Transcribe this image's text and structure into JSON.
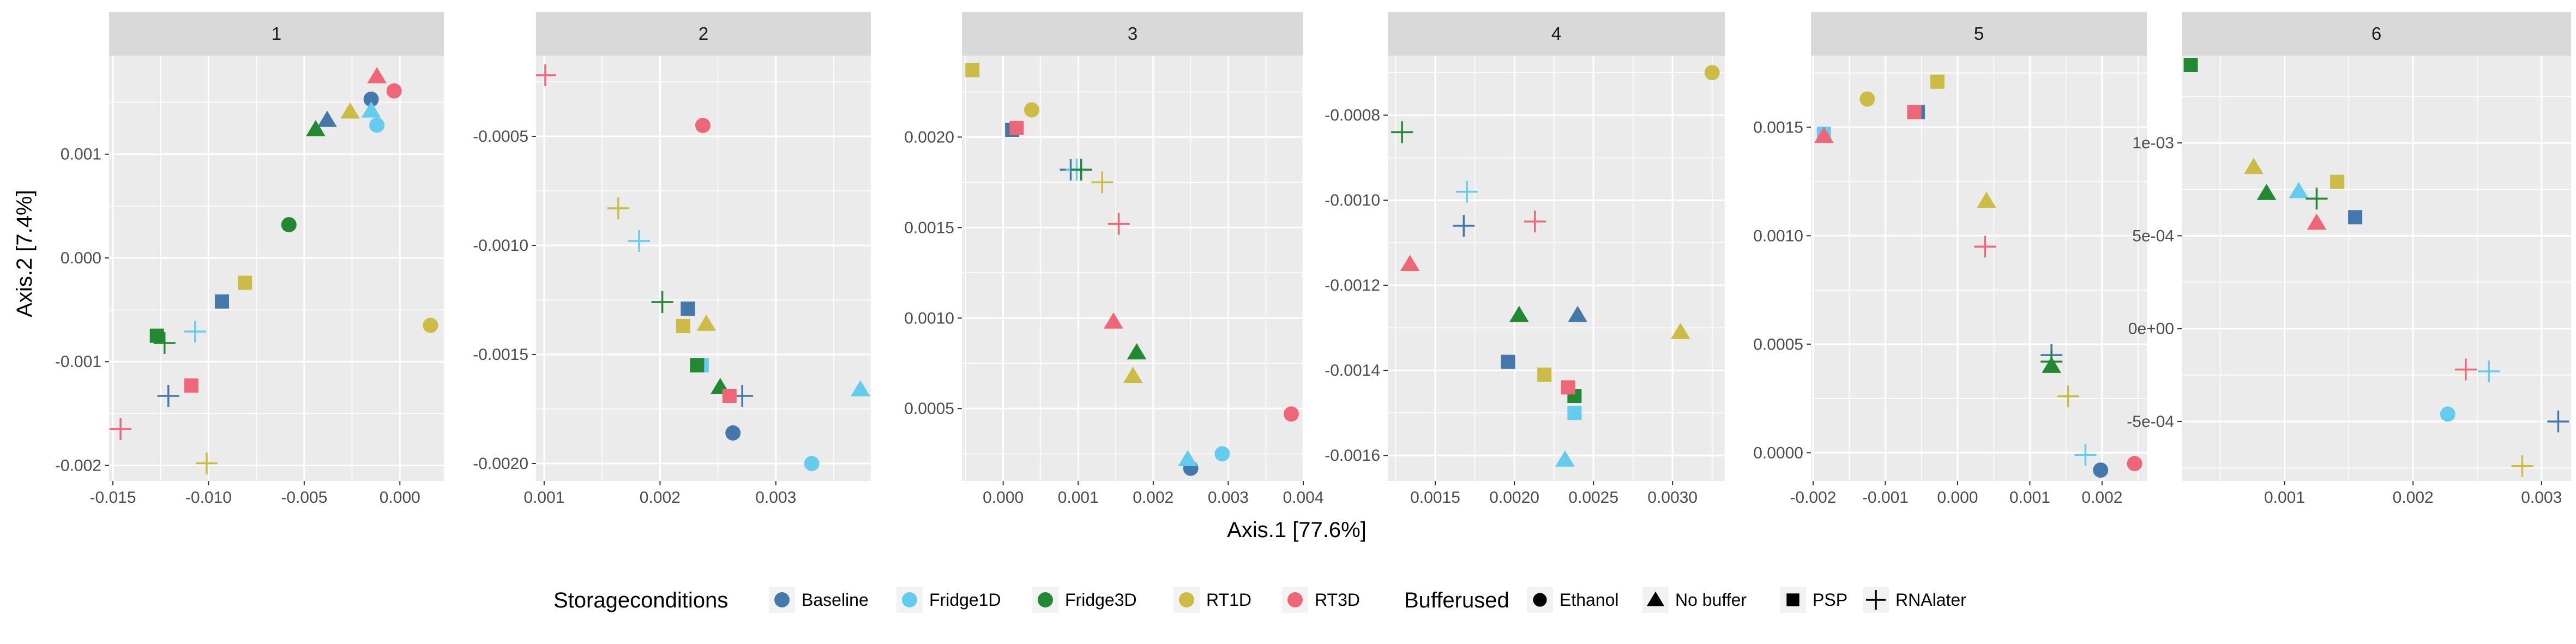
{
  "chart_data": {
    "type": "scatter",
    "xlabel": "Axis.1   [77.6%]",
    "ylabel": "Axis.2   [7.4%]",
    "colors": {
      "Baseline": "#4477AA",
      "Fridge1D": "#66CCEE",
      "Fridge3D": "#228833",
      "RT1D": "#CCBB44",
      "RT3D": "#EE6677"
    },
    "shapes": {
      "Ethanol": "circle",
      "No buffer": "triangle",
      "PSP": "square",
      "RNAlater": "plus"
    },
    "legend": {
      "position": "bottom",
      "color_title": "Storageconditions",
      "color_entries": [
        "Baseline",
        "Fridge1D",
        "Fridge3D",
        "RT1D",
        "RT3D"
      ],
      "shape_title": "Bufferused",
      "shape_entries": [
        "Ethanol",
        "No buffer",
        "PSP",
        "RNAlater"
      ]
    },
    "panels": [
      {
        "label": "1",
        "xlim": [
          -0.0152,
          0.0023
        ],
        "ylim": [
          -0.00215,
          0.00195
        ],
        "xticks": [
          -0.015,
          -0.01,
          -0.005,
          0.0
        ],
        "xtick_labels": [
          "-0.015",
          "-0.010",
          "-0.005",
          "0.000"
        ],
        "yticks": [
          -0.002,
          -0.001,
          0.0,
          0.001
        ],
        "ytick_labels": [
          "-0.002",
          "-0.001",
          "0.000",
          "0.001"
        ],
        "points": [
          {
            "x": -0.0015,
            "y": 0.00153,
            "color": "Baseline",
            "shape": "Ethanol"
          },
          {
            "x": -0.0038,
            "y": 0.00133,
            "color": "Baseline",
            "shape": "No buffer"
          },
          {
            "x": -0.0093,
            "y": -0.00042,
            "color": "Baseline",
            "shape": "PSP"
          },
          {
            "x": -0.0121,
            "y": -0.00133,
            "color": "Baseline",
            "shape": "RNAlater"
          },
          {
            "x": -0.0012,
            "y": 0.00128,
            "color": "Fridge1D",
            "shape": "Ethanol"
          },
          {
            "x": -0.0015,
            "y": 0.00142,
            "color": "Fridge1D",
            "shape": "No buffer"
          },
          {
            "x": -0.0107,
            "y": -0.00071,
            "color": "Fridge1D",
            "shape": "RNAlater"
          },
          {
            "x": -0.0058,
            "y": 0.00032,
            "color": "Fridge3D",
            "shape": "Ethanol"
          },
          {
            "x": -0.0044,
            "y": 0.00124,
            "color": "Fridge3D",
            "shape": "No buffer"
          },
          {
            "x": -0.0127,
            "y": -0.00075,
            "color": "Fridge3D",
            "shape": "PSP"
          },
          {
            "x": -0.0123,
            "y": -0.00082,
            "color": "Fridge3D",
            "shape": "RNAlater"
          },
          {
            "x": 0.0016,
            "y": -0.00065,
            "color": "RT1D",
            "shape": "Ethanol"
          },
          {
            "x": -0.0026,
            "y": 0.00141,
            "color": "RT1D",
            "shape": "No buffer"
          },
          {
            "x": -0.0081,
            "y": -0.00024,
            "color": "RT1D",
            "shape": "PSP"
          },
          {
            "x": -0.0101,
            "y": -0.00198,
            "color": "RT1D",
            "shape": "RNAlater"
          },
          {
            "x": -0.0003,
            "y": 0.00161,
            "color": "RT3D",
            "shape": "Ethanol"
          },
          {
            "x": -0.0012,
            "y": 0.00175,
            "color": "RT3D",
            "shape": "No buffer"
          },
          {
            "x": -0.0109,
            "y": -0.00123,
            "color": "RT3D",
            "shape": "PSP"
          },
          {
            "x": -0.0146,
            "y": -0.00165,
            "color": "RT3D",
            "shape": "RNAlater"
          }
        ]
      },
      {
        "label": "2",
        "xlim": [
          0.00093,
          0.00382
        ],
        "ylim": [
          -0.00208,
          -0.00013
        ],
        "xticks": [
          0.001,
          0.002,
          0.003
        ],
        "xtick_labels": [
          "0.001",
          "0.002",
          "0.003"
        ],
        "yticks": [
          -0.002,
          -0.0015,
          -0.001,
          -0.0005
        ],
        "ytick_labels": [
          "-0.0020",
          "-0.0015",
          "-0.0010",
          "-0.0005"
        ],
        "points": [
          {
            "x": 0.00263,
            "y": -0.00186,
            "color": "Baseline",
            "shape": "Ethanol"
          },
          {
            "x": 0.00224,
            "y": -0.00129,
            "color": "Baseline",
            "shape": "PSP"
          },
          {
            "x": 0.00271,
            "y": -0.00169,
            "color": "Baseline",
            "shape": "RNAlater"
          },
          {
            "x": 0.00331,
            "y": -0.002,
            "color": "Fridge1D",
            "shape": "Ethanol"
          },
          {
            "x": 0.00373,
            "y": -0.00166,
            "color": "Fridge1D",
            "shape": "No buffer"
          },
          {
            "x": 0.00236,
            "y": -0.00155,
            "color": "Fridge1D",
            "shape": "PSP"
          },
          {
            "x": 0.00182,
            "y": -0.00098,
            "color": "Fridge1D",
            "shape": "RNAlater"
          },
          {
            "x": 0.00252,
            "y": -0.00165,
            "color": "Fridge3D",
            "shape": "No buffer"
          },
          {
            "x": 0.00232,
            "y": -0.00155,
            "color": "Fridge3D",
            "shape": "PSP"
          },
          {
            "x": 0.00202,
            "y": -0.00126,
            "color": "Fridge3D",
            "shape": "RNAlater"
          },
          {
            "x": 0.0024,
            "y": -0.00136,
            "color": "RT1D",
            "shape": "No buffer"
          },
          {
            "x": 0.0022,
            "y": -0.00137,
            "color": "RT1D",
            "shape": "PSP"
          },
          {
            "x": 0.00164,
            "y": -0.00083,
            "color": "RT1D",
            "shape": "RNAlater"
          },
          {
            "x": 0.00237,
            "y": -0.00045,
            "color": "RT3D",
            "shape": "Ethanol"
          },
          {
            "x": 0.0026,
            "y": -0.00169,
            "color": "RT3D",
            "shape": "PSP"
          },
          {
            "x": 0.00101,
            "y": -0.00022,
            "color": "RT3D",
            "shape": "RNAlater"
          }
        ]
      },
      {
        "label": "3",
        "xlim": [
          -0.00055,
          0.004
        ],
        "ylim": [
          0.0001,
          0.00245
        ],
        "xticks": [
          0.0,
          0.001,
          0.002,
          0.003,
          0.004
        ],
        "xtick_labels": [
          "0.000",
          "0.001",
          "0.002",
          "0.003",
          "0.004"
        ],
        "yticks": [
          0.0005,
          0.001,
          0.0015,
          0.002
        ],
        "ytick_labels": [
          "0.0005",
          "0.0010",
          "0.0015",
          "0.0020"
        ],
        "points": [
          {
            "x": 0.0025,
            "y": 0.00017,
            "color": "Baseline",
            "shape": "Ethanol"
          },
          {
            "x": 0.00012,
            "y": 0.00204,
            "color": "Baseline",
            "shape": "PSP"
          },
          {
            "x": 0.0009,
            "y": 0.00182,
            "color": "Baseline",
            "shape": "RNAlater"
          },
          {
            "x": 0.00292,
            "y": 0.00025,
            "color": "Fridge1D",
            "shape": "Ethanol"
          },
          {
            "x": 0.00246,
            "y": 0.00022,
            "color": "Fridge1D",
            "shape": "No buffer"
          },
          {
            "x": 0.00098,
            "y": 0.00182,
            "color": "Fridge1D",
            "shape": "RNAlater"
          },
          {
            "x": 0.00178,
            "y": 0.00081,
            "color": "Fridge3D",
            "shape": "No buffer"
          },
          {
            "x": 0.00104,
            "y": 0.00182,
            "color": "Fridge3D",
            "shape": "RNAlater"
          },
          {
            "x": 0.00038,
            "y": 0.00215,
            "color": "RT1D",
            "shape": "Ethanol"
          },
          {
            "x": 0.00173,
            "y": 0.00068,
            "color": "RT1D",
            "shape": "No buffer"
          },
          {
            "x": -0.00041,
            "y": 0.00237,
            "color": "RT1D",
            "shape": "PSP"
          },
          {
            "x": 0.00132,
            "y": 0.00175,
            "color": "RT1D",
            "shape": "RNAlater"
          },
          {
            "x": 0.00384,
            "y": 0.00047,
            "color": "RT3D",
            "shape": "Ethanol"
          },
          {
            "x": 0.00147,
            "y": 0.00098,
            "color": "RT3D",
            "shape": "No buffer"
          },
          {
            "x": 0.00018,
            "y": 0.00205,
            "color": "RT3D",
            "shape": "PSP"
          },
          {
            "x": 0.00154,
            "y": 0.00152,
            "color": "RT3D",
            "shape": "RNAlater"
          }
        ]
      },
      {
        "label": "4",
        "xlim": [
          0.0012,
          0.00333
        ],
        "ylim": [
          -0.00166,
          -0.00066
        ],
        "xticks": [
          0.0015,
          0.002,
          0.0025,
          0.003
        ],
        "xtick_labels": [
          "0.0015",
          "0.0020",
          "0.0025",
          "0.0030"
        ],
        "yticks": [
          -0.0016,
          -0.0014,
          -0.0012,
          -0.001,
          -0.0008
        ],
        "ytick_labels": [
          "-0.0016",
          "-0.0014",
          "-0.0012",
          "-0.0010",
          "-0.0008"
        ],
        "points": [
          {
            "x": 0.0024,
            "y": -0.00127,
            "color": "Baseline",
            "shape": "No buffer"
          },
          {
            "x": 0.00196,
            "y": -0.00138,
            "color": "Baseline",
            "shape": "PSP"
          },
          {
            "x": 0.00168,
            "y": -0.00106,
            "color": "Baseline",
            "shape": "RNAlater"
          },
          {
            "x": 0.00232,
            "y": -0.00161,
            "color": "Fridge1D",
            "shape": "No buffer"
          },
          {
            "x": 0.00238,
            "y": -0.0015,
            "color": "Fridge1D",
            "shape": "PSP"
          },
          {
            "x": 0.0017,
            "y": -0.00098,
            "color": "Fridge1D",
            "shape": "RNAlater"
          },
          {
            "x": 0.00203,
            "y": -0.00127,
            "color": "Fridge3D",
            "shape": "No buffer"
          },
          {
            "x": 0.00238,
            "y": -0.00146,
            "color": "Fridge3D",
            "shape": "PSP"
          },
          {
            "x": 0.00129,
            "y": -0.00084,
            "color": "Fridge3D",
            "shape": "RNAlater"
          },
          {
            "x": 0.00325,
            "y": -0.0007,
            "color": "RT1D",
            "shape": "Ethanol"
          },
          {
            "x": 0.00305,
            "y": -0.00131,
            "color": "RT1D",
            "shape": "No buffer"
          },
          {
            "x": 0.00219,
            "y": -0.00141,
            "color": "RT1D",
            "shape": "PSP"
          },
          {
            "x": 0.00134,
            "y": -0.00115,
            "color": "RT3D",
            "shape": "No buffer"
          },
          {
            "x": 0.00234,
            "y": -0.00144,
            "color": "RT3D",
            "shape": "PSP"
          },
          {
            "x": 0.00213,
            "y": -0.00105,
            "color": "RT3D",
            "shape": "RNAlater"
          }
        ]
      },
      {
        "label": "5",
        "xlim": [
          -0.00203,
          0.00262
        ],
        "ylim": [
          -0.00013,
          0.00183
        ],
        "xticks": [
          -0.002,
          -0.001,
          0.0,
          0.001,
          0.002
        ],
        "xtick_labels": [
          "-0.002",
          "-0.001",
          "0.000",
          "0.001",
          "0.002"
        ],
        "yticks": [
          0.0,
          0.0005,
          0.001,
          0.0015
        ],
        "ytick_labels": [
          "0.0000",
          "0.0005",
          "0.0010",
          "0.0015"
        ],
        "points": [
          {
            "x": 0.00198,
            "y": -8e-05,
            "color": "Baseline",
            "shape": "Ethanol"
          },
          {
            "x": -0.00055,
            "y": 0.00157,
            "color": "Baseline",
            "shape": "PSP"
          },
          {
            "x": 0.0013,
            "y": 0.00045,
            "color": "Baseline",
            "shape": "RNAlater"
          },
          {
            "x": -0.00185,
            "y": 0.00147,
            "color": "Fridge1D",
            "shape": "PSP"
          },
          {
            "x": 0.00177,
            "y": -1e-05,
            "color": "Fridge1D",
            "shape": "RNAlater"
          },
          {
            "x": 0.0013,
            "y": 0.0004,
            "color": "Fridge3D",
            "shape": "No buffer"
          },
          {
            "x": 0.0013,
            "y": 0.00042,
            "color": "Fridge3D",
            "shape": "RNAlater"
          },
          {
            "x": -0.00125,
            "y": 0.00163,
            "color": "RT1D",
            "shape": "Ethanol"
          },
          {
            "x": 0.0004,
            "y": 0.00116,
            "color": "RT1D",
            "shape": "No buffer"
          },
          {
            "x": -0.00028,
            "y": 0.00171,
            "color": "RT1D",
            "shape": "PSP"
          },
          {
            "x": 0.00153,
            "y": 0.00026,
            "color": "RT1D",
            "shape": "RNAlater"
          },
          {
            "x": 0.00245,
            "y": -5e-05,
            "color": "RT3D",
            "shape": "Ethanol"
          },
          {
            "x": -0.00185,
            "y": 0.00146,
            "color": "RT3D",
            "shape": "No buffer"
          },
          {
            "x": -0.0006,
            "y": 0.00157,
            "color": "RT3D",
            "shape": "PSP"
          },
          {
            "x": 0.00038,
            "y": 0.00095,
            "color": "RT3D",
            "shape": "RNAlater"
          }
        ]
      },
      {
        "label": "6",
        "xlim": [
          0.0002,
          0.00323
        ],
        "ylim": [
          -0.00082,
          0.00147
        ],
        "xticks": [
          0.001,
          0.002,
          0.003
        ],
        "xtick_labels": [
          "0.001",
          "0.002",
          "0.003"
        ],
        "yticks": [
          -0.0005,
          0.0,
          0.0005,
          0.001
        ],
        "ytick_labels": [
          "-5e-04",
          "0e+00",
          "5e-04",
          "1e-03"
        ],
        "points": [
          {
            "x": 0.00155,
            "y": 0.0006,
            "color": "Baseline",
            "shape": "PSP"
          },
          {
            "x": 0.00313,
            "y": -0.0005,
            "color": "Baseline",
            "shape": "RNAlater"
          },
          {
            "x": 0.00227,
            "y": -0.00046,
            "color": "Fridge1D",
            "shape": "Ethanol"
          },
          {
            "x": 0.00111,
            "y": 0.00074,
            "color": "Fridge1D",
            "shape": "No buffer"
          },
          {
            "x": 0.00259,
            "y": -0.00023,
            "color": "Fridge1D",
            "shape": "RNAlater"
          },
          {
            "x": 0.00086,
            "y": 0.00073,
            "color": "Fridge3D",
            "shape": "No buffer"
          },
          {
            "x": 0.00027,
            "y": 0.00142,
            "color": "Fridge3D",
            "shape": "PSP"
          },
          {
            "x": 0.00125,
            "y": 0.0007,
            "color": "Fridge3D",
            "shape": "RNAlater"
          },
          {
            "x": 0.00076,
            "y": 0.00087,
            "color": "RT1D",
            "shape": "No buffer"
          },
          {
            "x": 0.00141,
            "y": 0.00079,
            "color": "RT1D",
            "shape": "PSP"
          },
          {
            "x": 0.00285,
            "y": -0.00074,
            "color": "RT1D",
            "shape": "RNAlater"
          },
          {
            "x": 0.00125,
            "y": 0.00057,
            "color": "RT3D",
            "shape": "No buffer"
          },
          {
            "x": 0.00241,
            "y": -0.00022,
            "color": "RT3D",
            "shape": "RNAlater"
          }
        ]
      }
    ]
  }
}
